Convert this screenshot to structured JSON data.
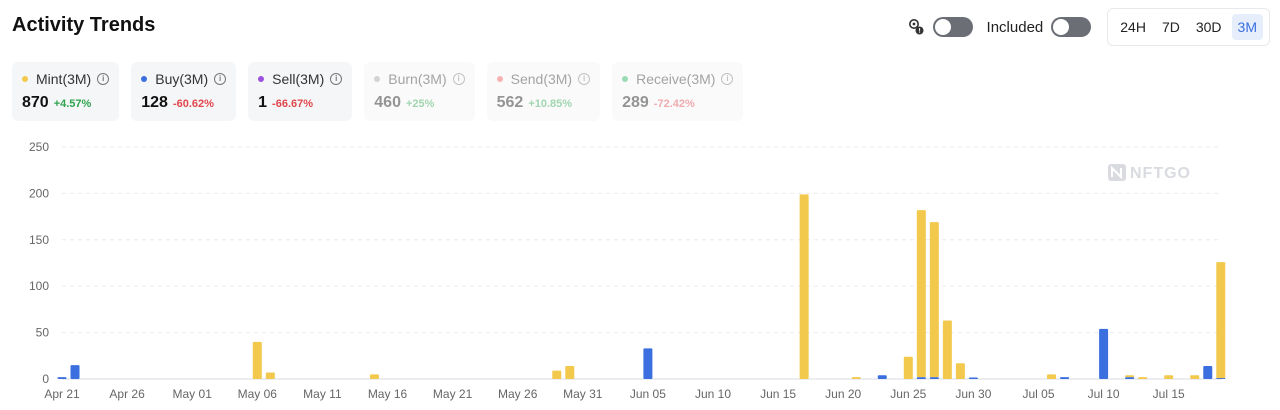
{
  "title": "Activity Trends",
  "controls": {
    "included_label": "Included",
    "ranges": [
      "24H",
      "7D",
      "30D",
      "3M"
    ],
    "active_range": "3M"
  },
  "cards": [
    {
      "label": "Mint(3M)",
      "value": "870",
      "change": "+4.57%",
      "dot_color": "#f2c94c",
      "change_color": "pos",
      "dim": false
    },
    {
      "label": "Buy(3M)",
      "value": "128",
      "change": "-60.62%",
      "dot_color": "#3b6fe0",
      "change_color": "neg",
      "dim": false
    },
    {
      "label": "Sell(3M)",
      "value": "1",
      "change": "-66.67%",
      "dot_color": "#9b51e0",
      "change_color": "neg",
      "dim": false
    },
    {
      "label": "Burn(3M)",
      "value": "460",
      "change": "+25%",
      "dot_color": "#9e9e9e",
      "change_color": "pos",
      "dim": true
    },
    {
      "label": "Send(3M)",
      "value": "562",
      "change": "+10.85%",
      "dot_color": "#eb5757",
      "change_color": "pos",
      "dim": true
    },
    {
      "label": "Receive(3M)",
      "value": "289",
      "change": "-72.42%",
      "dot_color": "#27ae60",
      "change_color": "neg",
      "dim": true
    }
  ],
  "watermark": "NFTGO",
  "chart_data": {
    "type": "bar",
    "stacked": true,
    "ylim": [
      0,
      250
    ],
    "yticks": [
      0,
      50,
      100,
      150,
      200,
      250
    ],
    "grid": true,
    "x_tick_labels": [
      {
        "label": "Apr 21",
        "day": 0
      },
      {
        "label": "Apr 26",
        "day": 5
      },
      {
        "label": "May 01",
        "day": 10
      },
      {
        "label": "May 06",
        "day": 15
      },
      {
        "label": "May 11",
        "day": 20
      },
      {
        "label": "May 16",
        "day": 25
      },
      {
        "label": "May 21",
        "day": 30
      },
      {
        "label": "May 26",
        "day": 35
      },
      {
        "label": "May 31",
        "day": 40
      },
      {
        "label": "Jun 05",
        "day": 45
      },
      {
        "label": "Jun 10",
        "day": 50
      },
      {
        "label": "Jun 15",
        "day": 55
      },
      {
        "label": "Jun 20",
        "day": 60
      },
      {
        "label": "Jun 25",
        "day": 65
      },
      {
        "label": "Jun 30",
        "day": 70
      },
      {
        "label": "Jul 05",
        "day": 75
      },
      {
        "label": "Jul 10",
        "day": 80
      },
      {
        "label": "Jul 15",
        "day": 85
      }
    ],
    "series": [
      {
        "name": "Mint",
        "color": "#f2c94c",
        "points": [
          {
            "day": 15,
            "value": 40
          },
          {
            "day": 16,
            "value": 7
          },
          {
            "day": 24,
            "value": 5
          },
          {
            "day": 38,
            "value": 9
          },
          {
            "day": 39,
            "value": 14
          },
          {
            "day": 57,
            "value": 199
          },
          {
            "day": 61,
            "value": 2
          },
          {
            "day": 65,
            "value": 24
          },
          {
            "day": 66,
            "value": 180
          },
          {
            "day": 67,
            "value": 167
          },
          {
            "day": 68,
            "value": 63
          },
          {
            "day": 69,
            "value": 17
          },
          {
            "day": 76,
            "value": 5
          },
          {
            "day": 82,
            "value": 2
          },
          {
            "day": 83,
            "value": 2
          },
          {
            "day": 85,
            "value": 4
          },
          {
            "day": 87,
            "value": 4
          },
          {
            "day": 89,
            "value": 125
          }
        ]
      },
      {
        "name": "Buy",
        "color": "#3b6fe0",
        "points": [
          {
            "day": 0,
            "value": 2
          },
          {
            "day": 1,
            "value": 15
          },
          {
            "day": 45,
            "value": 33
          },
          {
            "day": 63,
            "value": 4
          },
          {
            "day": 66,
            "value": 2
          },
          {
            "day": 67,
            "value": 2
          },
          {
            "day": 70,
            "value": 1
          },
          {
            "day": 77,
            "value": 2
          },
          {
            "day": 80,
            "value": 54
          },
          {
            "day": 82,
            "value": 2
          },
          {
            "day": 88,
            "value": 14
          },
          {
            "day": 89,
            "value": 1
          }
        ]
      }
    ]
  }
}
